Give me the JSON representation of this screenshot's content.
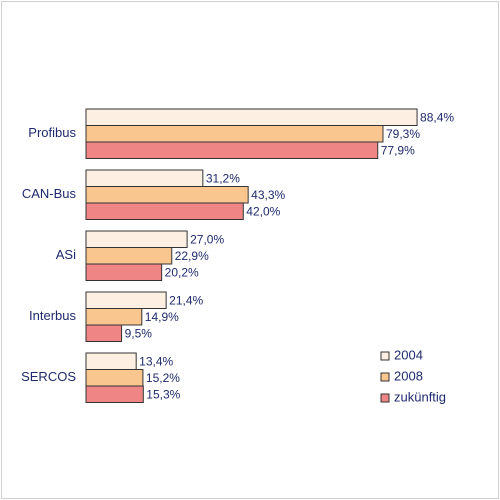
{
  "chart_data": {
    "type": "hbar",
    "categories": [
      "Profibus",
      "CAN-Bus",
      "ASi",
      "Interbus",
      "SERCOS"
    ],
    "xlim": [
      0,
      100
    ],
    "series": [
      {
        "name": "2004",
        "color": "#fdf0e3",
        "values": [
          88.4,
          31.2,
          27.0,
          21.4,
          13.4
        ],
        "value_labels": [
          "88,4%",
          "31,2%",
          "27,0%",
          "21,4%",
          "13,4%"
        ]
      },
      {
        "name": "2008",
        "color": "#f9c690",
        "values": [
          79.3,
          43.3,
          22.9,
          14.9,
          15.2
        ],
        "value_labels": [
          "79,3%",
          "43,3%",
          "22,9%",
          "14,9%",
          "15,2%"
        ]
      },
      {
        "name": "zukünftig",
        "color": "#f08585",
        "values": [
          77.9,
          42.0,
          20.2,
          9.5,
          15.3
        ],
        "value_labels": [
          "77,9%",
          "42,0%",
          "20,2%",
          "9,5%",
          "15,3%"
        ]
      }
    ]
  }
}
